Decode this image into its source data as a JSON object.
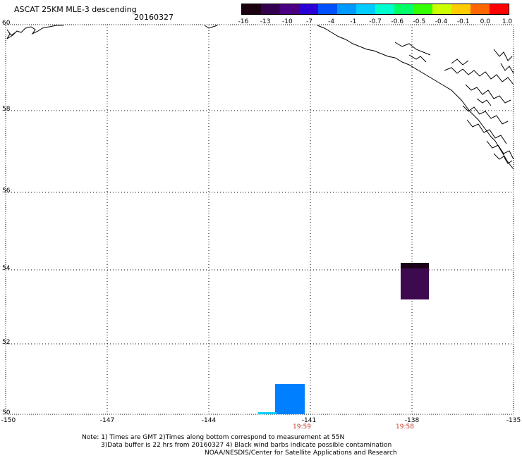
{
  "header": {
    "title": "ASCAT 25KM MLE-3 descending",
    "date": "20160327"
  },
  "colorbar": {
    "labels": [
      "-16",
      "-13",
      "-10",
      "-7",
      "-4",
      "-1",
      "-0.7",
      "-0.6",
      "-0.5",
      "-0.4",
      "-0.1",
      "0.0",
      "1.0"
    ],
    "colors": [
      "#1a0010",
      "#33004d",
      "#4b0082",
      "#2a00d6",
      "#0050ff",
      "#0099ff",
      "#00ccff",
      "#00ffcc",
      "#00ff66",
      "#33ff00",
      "#ccff00",
      "#ffcc00",
      "#ff6600",
      "#ff0000"
    ]
  },
  "map": {
    "lat_labels": [
      "60",
      "58",
      "56",
      "54",
      "52",
      "50"
    ],
    "lon_labels": [
      "-150",
      "-147",
      "-144",
      "-141",
      "-138",
      "-135"
    ],
    "time_labels": [
      {
        "lon": "-141",
        "text": "19:59"
      },
      {
        "lon": "-138",
        "text": "19:58"
      }
    ],
    "data_patch_colors": {
      "purple": "#3d0a4f",
      "purple_dark": "#1a0018",
      "blue": "#0080ff",
      "cyan": "#00ccff"
    }
  },
  "notes": {
    "line1": "Note: 1) Times are GMT 2)Times along bottom correspond to measurement at 55N",
    "line2": "3)Data buffer is 22 hrs from 20160327 4) Black wind barbs indicate possible contamination",
    "line3": "NOAA/NESDIS/Center for Satellite Applications and Research"
  }
}
